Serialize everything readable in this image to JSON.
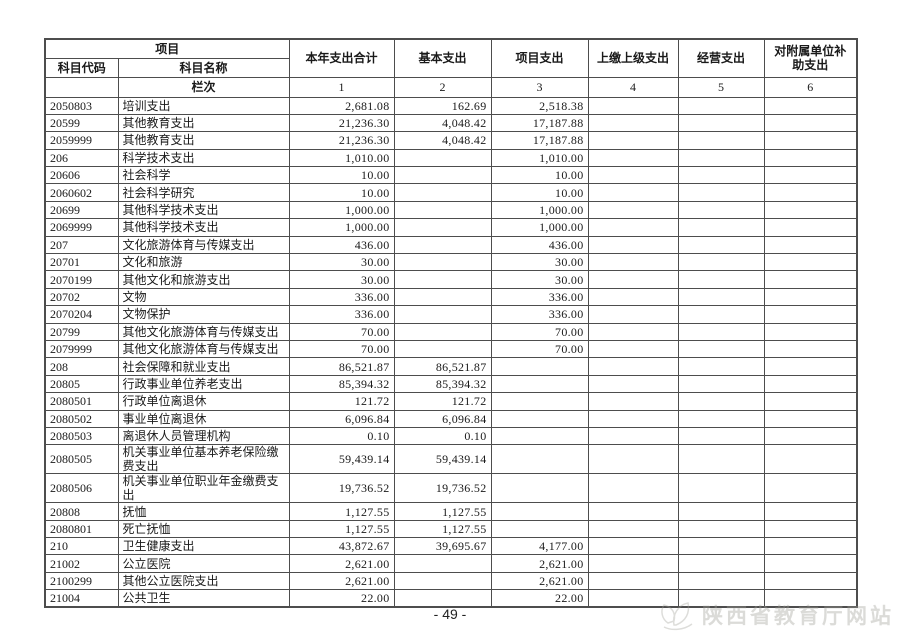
{
  "table": {
    "header": {
      "project": "项目",
      "code": "科目代码",
      "name": "科目名称",
      "total": "本年支出合计",
      "basic": "基本支出",
      "project_exp": "项目支出",
      "upper": "上缴上级支出",
      "operating": "经营支出",
      "subsidy": "对附属单位补助支出",
      "lanci": "栏次",
      "col_nums": [
        "1",
        "2",
        "3",
        "4",
        "5",
        "6"
      ]
    },
    "rows": [
      {
        "code": "2050803",
        "name": "培训支出",
        "total": "2,681.08",
        "basic": "162.69",
        "project": "2,518.38",
        "upper": "",
        "operating": "",
        "subsidy": ""
      },
      {
        "code": "20599",
        "name": "其他教育支出",
        "total": "21,236.30",
        "basic": "4,048.42",
        "project": "17,187.88",
        "upper": "",
        "operating": "",
        "subsidy": ""
      },
      {
        "code": "2059999",
        "name": "其他教育支出",
        "total": "21,236.30",
        "basic": "4,048.42",
        "project": "17,187.88",
        "upper": "",
        "operating": "",
        "subsidy": ""
      },
      {
        "code": "206",
        "name": "科学技术支出",
        "total": "1,010.00",
        "basic": "",
        "project": "1,010.00",
        "upper": "",
        "operating": "",
        "subsidy": ""
      },
      {
        "code": "20606",
        "name": "社会科学",
        "total": "10.00",
        "basic": "",
        "project": "10.00",
        "upper": "",
        "operating": "",
        "subsidy": ""
      },
      {
        "code": "2060602",
        "name": "社会科学研究",
        "total": "10.00",
        "basic": "",
        "project": "10.00",
        "upper": "",
        "operating": "",
        "subsidy": ""
      },
      {
        "code": "20699",
        "name": "其他科学技术支出",
        "total": "1,000.00",
        "basic": "",
        "project": "1,000.00",
        "upper": "",
        "operating": "",
        "subsidy": ""
      },
      {
        "code": "2069999",
        "name": "其他科学技术支出",
        "total": "1,000.00",
        "basic": "",
        "project": "1,000.00",
        "upper": "",
        "operating": "",
        "subsidy": ""
      },
      {
        "code": "207",
        "name": "文化旅游体育与传媒支出",
        "total": "436.00",
        "basic": "",
        "project": "436.00",
        "upper": "",
        "operating": "",
        "subsidy": ""
      },
      {
        "code": "20701",
        "name": "文化和旅游",
        "total": "30.00",
        "basic": "",
        "project": "30.00",
        "upper": "",
        "operating": "",
        "subsidy": ""
      },
      {
        "code": "2070199",
        "name": "其他文化和旅游支出",
        "total": "30.00",
        "basic": "",
        "project": "30.00",
        "upper": "",
        "operating": "",
        "subsidy": ""
      },
      {
        "code": "20702",
        "name": "文物",
        "total": "336.00",
        "basic": "",
        "project": "336.00",
        "upper": "",
        "operating": "",
        "subsidy": ""
      },
      {
        "code": "2070204",
        "name": "文物保护",
        "total": "336.00",
        "basic": "",
        "project": "336.00",
        "upper": "",
        "operating": "",
        "subsidy": ""
      },
      {
        "code": "20799",
        "name": "其他文化旅游体育与传媒支出",
        "total": "70.00",
        "basic": "",
        "project": "70.00",
        "upper": "",
        "operating": "",
        "subsidy": ""
      },
      {
        "code": "2079999",
        "name": "其他文化旅游体育与传媒支出",
        "total": "70.00",
        "basic": "",
        "project": "70.00",
        "upper": "",
        "operating": "",
        "subsidy": ""
      },
      {
        "code": "208",
        "name": "社会保障和就业支出",
        "total": "86,521.87",
        "basic": "86,521.87",
        "project": "",
        "upper": "",
        "operating": "",
        "subsidy": ""
      },
      {
        "code": "20805",
        "name": "行政事业单位养老支出",
        "total": "85,394.32",
        "basic": "85,394.32",
        "project": "",
        "upper": "",
        "operating": "",
        "subsidy": ""
      },
      {
        "code": "2080501",
        "name": "行政单位离退休",
        "total": "121.72",
        "basic": "121.72",
        "project": "",
        "upper": "",
        "operating": "",
        "subsidy": ""
      },
      {
        "code": "2080502",
        "name": "事业单位离退休",
        "total": "6,096.84",
        "basic": "6,096.84",
        "project": "",
        "upper": "",
        "operating": "",
        "subsidy": ""
      },
      {
        "code": "2080503",
        "name": "离退休人员管理机构",
        "total": "0.10",
        "basic": "0.10",
        "project": "",
        "upper": "",
        "operating": "",
        "subsidy": ""
      },
      {
        "code": "2080505",
        "name": "机关事业单位基本养老保险缴费支出",
        "total": "59,439.14",
        "basic": "59,439.14",
        "project": "",
        "upper": "",
        "operating": "",
        "subsidy": ""
      },
      {
        "code": "2080506",
        "name": "机关事业单位职业年金缴费支出",
        "total": "19,736.52",
        "basic": "19,736.52",
        "project": "",
        "upper": "",
        "operating": "",
        "subsidy": ""
      },
      {
        "code": "20808",
        "name": "抚恤",
        "total": "1,127.55",
        "basic": "1,127.55",
        "project": "",
        "upper": "",
        "operating": "",
        "subsidy": ""
      },
      {
        "code": "2080801",
        "name": "死亡抚恤",
        "total": "1,127.55",
        "basic": "1,127.55",
        "project": "",
        "upper": "",
        "operating": "",
        "subsidy": ""
      },
      {
        "code": "210",
        "name": "卫生健康支出",
        "total": "43,872.67",
        "basic": "39,695.67",
        "project": "4,177.00",
        "upper": "",
        "operating": "",
        "subsidy": ""
      },
      {
        "code": "21002",
        "name": "公立医院",
        "total": "2,621.00",
        "basic": "",
        "project": "2,621.00",
        "upper": "",
        "operating": "",
        "subsidy": ""
      },
      {
        "code": "2100299",
        "name": "其他公立医院支出",
        "total": "2,621.00",
        "basic": "",
        "project": "2,621.00",
        "upper": "",
        "operating": "",
        "subsidy": ""
      },
      {
        "code": "21004",
        "name": "公共卫生",
        "total": "22.00",
        "basic": "",
        "project": "22.00",
        "upper": "",
        "operating": "",
        "subsidy": ""
      }
    ]
  },
  "footer": {
    "page_number": "- 49 -"
  },
  "watermark": {
    "text": "陕西省教育厅网站"
  }
}
